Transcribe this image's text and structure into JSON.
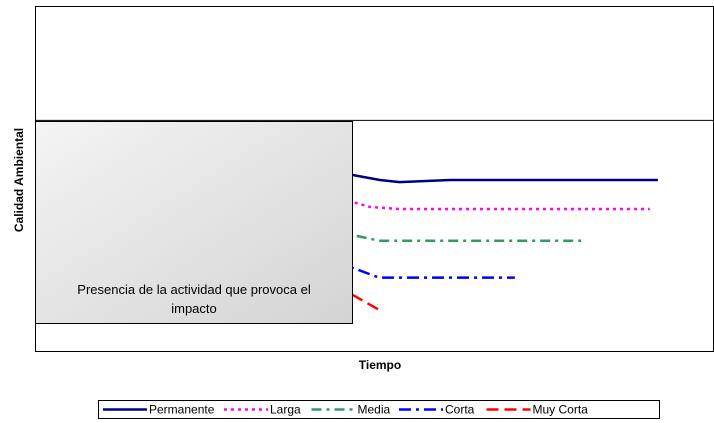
{
  "chart_data": {
    "type": "line",
    "ylabel": "Calidad Ambiental",
    "xlabel": "Tiempo",
    "annotation": "Presencia de la actividad que provoca el impacto",
    "xlim": [
      0,
      100
    ],
    "ylim": [
      0,
      100
    ],
    "hline": 67,
    "series": [
      {
        "name": "Permanente",
        "color": "#000080",
        "dash": "none",
        "x": [
          44,
          46.7,
          50.8,
          53.7,
          61.1,
          91.8
        ],
        "values": [
          51.2,
          51.2,
          49.7,
          49.1,
          49.7,
          49.7
        ]
      },
      {
        "name": "Larga",
        "color": "#ff00ff",
        "dash": "3,4",
        "x": [
          44,
          46.7,
          49.3,
          53.7,
          90.6
        ],
        "values": [
          43.4,
          43.4,
          41.9,
          41.3,
          41.3
        ]
      },
      {
        "name": "Media",
        "color": "#339966",
        "dash": "10,5,3,5",
        "x": [
          44,
          46.7,
          50.7,
          81
        ],
        "values": [
          33.8,
          33.8,
          32.1,
          32.1
        ]
      },
      {
        "name": "Corta",
        "color": "#0000ff",
        "dash": "12,5,3,5",
        "x": [
          44,
          46.7,
          50.7,
          70.7
        ],
        "values": [
          24.3,
          24.3,
          21.4,
          21.4
        ]
      },
      {
        "name": "Muy Corta",
        "color": "#ff0000",
        "dash": "12,6",
        "x": [
          44,
          46.7,
          51.1
        ],
        "values": [
          16.5,
          16.5,
          11.6
        ]
      }
    ]
  }
}
